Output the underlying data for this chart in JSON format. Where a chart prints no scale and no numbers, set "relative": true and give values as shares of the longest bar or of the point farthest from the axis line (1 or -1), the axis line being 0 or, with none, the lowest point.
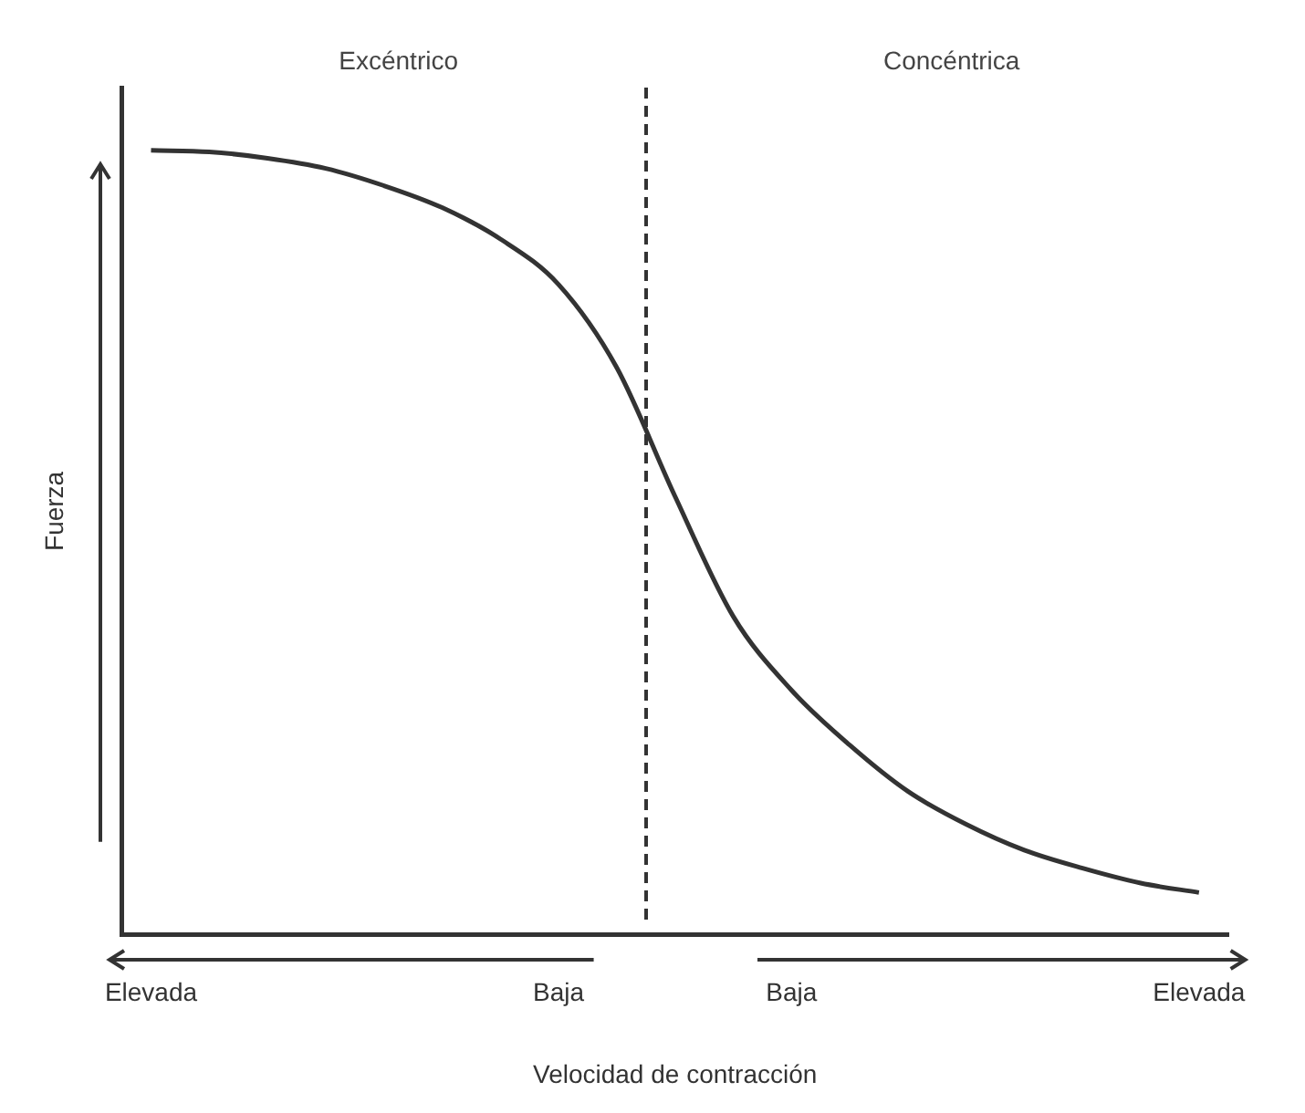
{
  "chart_data": {
    "type": "line",
    "relative": true,
    "xlabel": "Velocidad de contracción",
    "ylabel": "Fuerza",
    "categories": [
      "Elevada",
      null,
      null,
      null,
      null,
      null,
      null,
      "Baja",
      null,
      null,
      null,
      "Baja",
      null,
      null,
      null,
      null,
      null,
      null,
      "Elevada"
    ],
    "series": [
      {
        "color": "#333333",
        "values": [
          1.0,
          0.998,
          0.99,
          0.977,
          0.955,
          0.927,
          0.887,
          0.829,
          0.723,
          0.559,
          0.406,
          0.312,
          0.242,
          0.183,
          0.141,
          0.108,
          0.085,
          0.066,
          0.054
        ]
      }
    ],
    "annotations": [
      "Excéntrico",
      "Concéntrica"
    ],
    "marker": "none",
    "line_style": "solid",
    "grid": false,
    "legend": false
  }
}
